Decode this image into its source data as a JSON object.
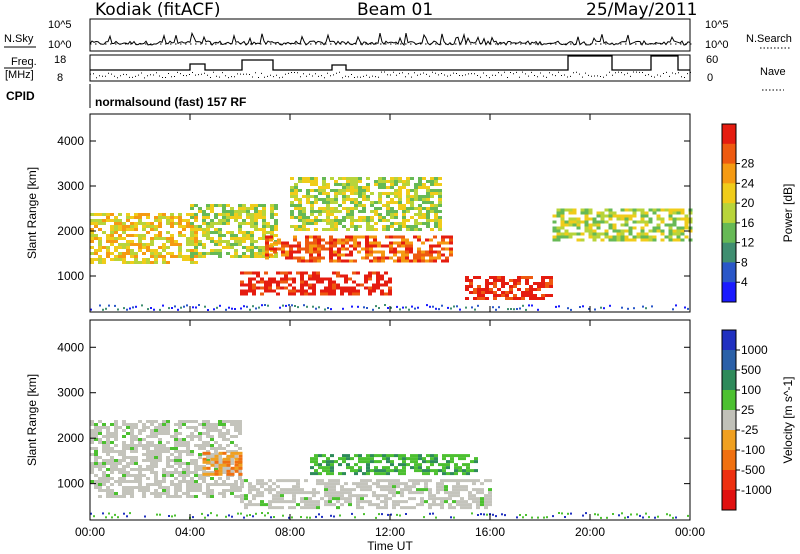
{
  "header": {
    "station": "Kodiak (fitACF)",
    "beam": "Beam 01",
    "date": "25/May/2011"
  },
  "status_panels": {
    "nsky_label": "N.Sky",
    "nsearch_label": "N.Search",
    "noise_ticks": [
      "10^5",
      "10^0"
    ],
    "freq_label_1": "Freq.",
    "freq_label_2": "[MHz]",
    "freq_ticks": [
      "18",
      "8"
    ],
    "nave_label": "Nave",
    "nave_ticks": [
      "60",
      "0"
    ],
    "cpid_label": "CPID",
    "cpid_text": "normalsound (fast) 157 RF"
  },
  "chart_data": [
    {
      "type": "heatmap",
      "panel": "power",
      "ylabel": "Slant Range [km]",
      "yticks": [
        1000,
        2000,
        3000,
        4000
      ],
      "ylim": [
        200,
        4600
      ],
      "xlim": [
        0,
        24
      ],
      "xticks": [
        "00:00",
        "04:00",
        "08:00",
        "12:00",
        "16:00",
        "20:00",
        "00:00"
      ],
      "colorbar": {
        "label": "Power [dB]",
        "ticks": [
          "4",
          "8",
          "12",
          "16",
          "20",
          "24",
          "28"
        ],
        "colors": [
          "#1a1aff",
          "#2a57c8",
          "#3f8e70",
          "#66b955",
          "#b8d43a",
          "#f0cc1a",
          "#f59a12",
          "#ee5a10",
          "#e51c10"
        ]
      },
      "echo_regions": [
        {
          "t0": 0.0,
          "t1": 4.2,
          "r0": 1300,
          "r1": 2400,
          "level": 5
        },
        {
          "t0": 4.0,
          "t1": 7.5,
          "r0": 1400,
          "r1": 2600,
          "level": 4
        },
        {
          "t0": 6.0,
          "t1": 12.0,
          "r0": 600,
          "r1": 1100,
          "level": 8
        },
        {
          "t0": 7.0,
          "t1": 14.5,
          "r0": 1300,
          "r1": 1900,
          "level": 7
        },
        {
          "t0": 8.0,
          "t1": 14.0,
          "r0": 2000,
          "r1": 3200,
          "level": 4
        },
        {
          "t0": 15.0,
          "t1": 18.5,
          "r0": 500,
          "r1": 1000,
          "level": 8
        },
        {
          "t0": 18.5,
          "t1": 24.0,
          "r0": 1800,
          "r1": 2500,
          "level": 4
        }
      ]
    },
    {
      "type": "heatmap",
      "panel": "velocity",
      "ylabel": "Slant Range [km]",
      "yticks": [
        1000,
        2000,
        3000,
        4000
      ],
      "ylim": [
        200,
        4600
      ],
      "xlim": [
        0,
        24
      ],
      "xlabel": "Time UT",
      "xticks": [
        "00:00",
        "04:00",
        "08:00",
        "12:00",
        "16:00",
        "20:00",
        "00:00"
      ],
      "colorbar": {
        "label": "Velocity [m s^-1]",
        "ticks": [
          "1000",
          "500",
          "100",
          "25",
          "-25",
          "-100",
          "-500",
          "-1000"
        ],
        "colors": [
          "#2030c0",
          "#2a60a8",
          "#2e8a5a",
          "#4cc030",
          "#c0c0b8",
          "#f0a020",
          "#f07010",
          "#ee3010",
          "#e01010"
        ]
      },
      "echo_regions": [
        {
          "t0": 0.0,
          "t1": 6.0,
          "r0": 700,
          "r1": 2400,
          "level": "ground"
        },
        {
          "t0": 6.0,
          "t1": 16.0,
          "r0": 500,
          "r1": 1100,
          "level": "ground"
        },
        {
          "t0": 8.8,
          "t1": 15.5,
          "r0": 1250,
          "r1": 1650,
          "level": "green"
        },
        {
          "t0": 4.5,
          "t1": 6.0,
          "r0": 1200,
          "r1": 1700,
          "level": "orange"
        }
      ]
    }
  ]
}
